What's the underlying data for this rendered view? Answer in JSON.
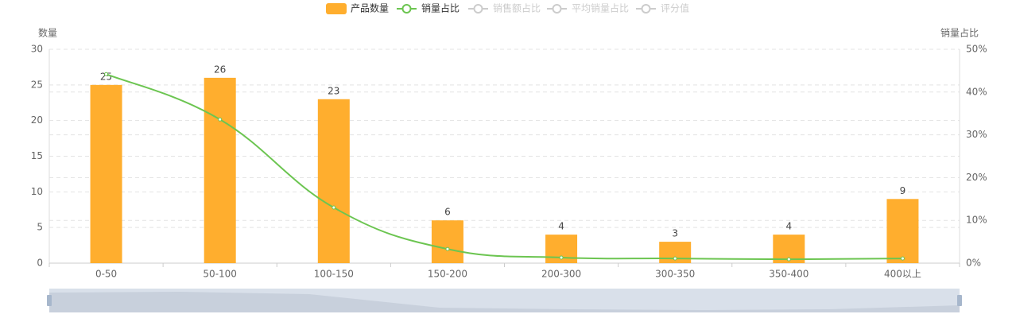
{
  "chart_data": {
    "type": "bar-line",
    "categories": [
      "0-50",
      "50-100",
      "100-150",
      "150-200",
      "200-300",
      "300-350",
      "350-400",
      "400以上"
    ],
    "series": [
      {
        "name": "产品数量",
        "type": "bar",
        "color": "#ffae2e",
        "values": [
          25,
          26,
          23,
          6,
          4,
          3,
          4,
          9
        ]
      },
      {
        "name": "销量占比",
        "type": "line",
        "axis": "y2",
        "color": "#6cc551",
        "values": [
          44.2,
          33.6,
          13.0,
          3.3,
          1.3,
          1.1,
          0.9,
          1.1
        ]
      },
      {
        "name": "销售额占比",
        "type": "line",
        "axis": "y2",
        "color": "#cccccc",
        "visible": false
      },
      {
        "name": "平均销量占比",
        "type": "line",
        "axis": "y2",
        "color": "#cccccc",
        "visible": false
      },
      {
        "name": "评分值",
        "type": "line",
        "axis": "y2",
        "color": "#cccccc",
        "visible": false
      }
    ],
    "y_label": "数量",
    "y2_label": "销量占比",
    "ylim": [
      0,
      30
    ],
    "yticks": [
      0,
      5,
      10,
      15,
      20,
      25,
      30
    ],
    "y2lim": [
      0,
      50
    ],
    "y2ticks": [
      {
        "value": 0,
        "label": "0%"
      },
      {
        "value": 10,
        "label": "10%"
      },
      {
        "value": 20,
        "label": "20%"
      },
      {
        "value": 30,
        "label": "30%"
      },
      {
        "value": 40,
        "label": "40%"
      },
      {
        "value": 50,
        "label": "50%"
      }
    ],
    "grid": true,
    "show_value_labels": true,
    "data_zoom": true
  }
}
